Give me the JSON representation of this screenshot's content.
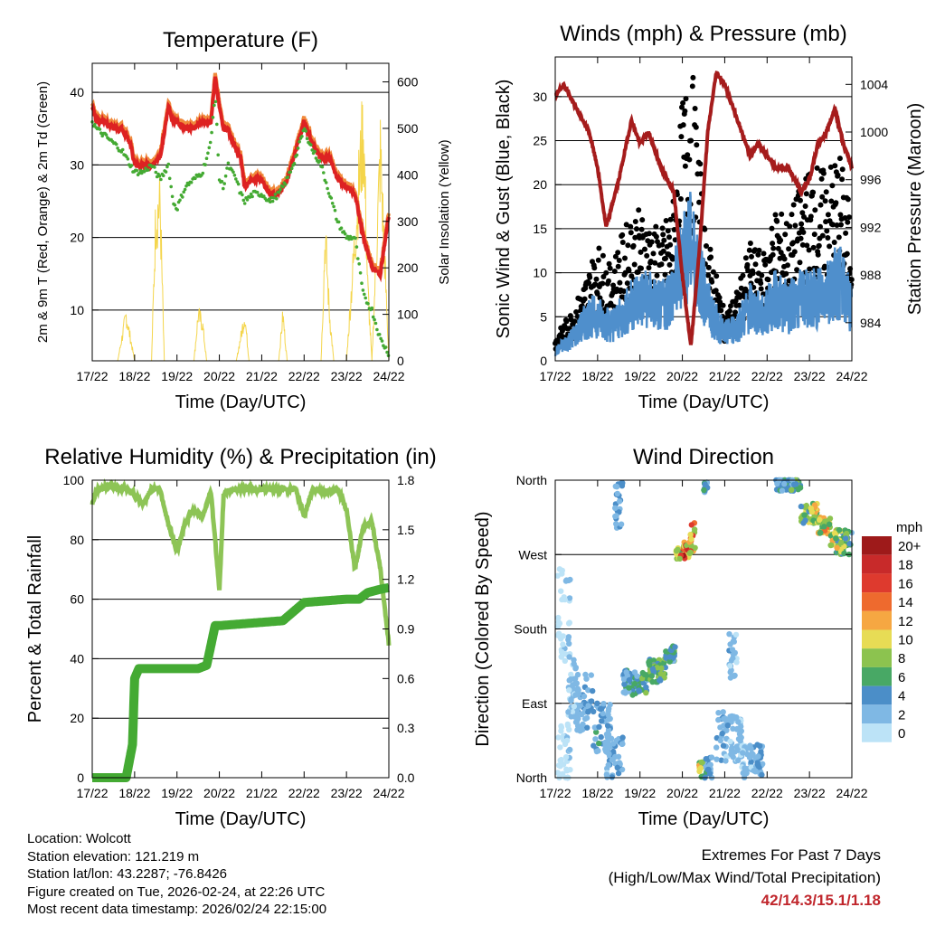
{
  "chart_data": [
    {
      "type": "line",
      "title": "Temperature (F)",
      "xlabel": "Time (Day/UTC)",
      "ylabel": "2m & 9m T (Red, Orange) & 2m Td (Green)",
      "y2label": "Solar Insolation (Yellow)",
      "x_ticks": [
        "17/22",
        "18/22",
        "19/22",
        "20/22",
        "21/22",
        "22/22",
        "23/22",
        "24/22"
      ],
      "y_ticks": [
        "10",
        "20",
        "30",
        "40"
      ],
      "y2_ticks": [
        "0",
        "100",
        "200",
        "300",
        "400",
        "500",
        "600"
      ],
      "ylim": [
        3,
        44
      ],
      "y2lim": [
        0,
        640
      ],
      "series": [
        {
          "name": "2m T",
          "color": "#dd2222",
          "x": [
            0,
            0.1,
            0.3,
            0.5,
            0.7,
            0.9,
            1.0,
            1.2,
            1.4,
            1.6,
            1.8,
            1.9,
            2.0,
            2.2,
            2.4,
            2.6,
            2.8,
            2.9,
            3.0,
            3.1,
            3.2,
            3.4,
            3.5,
            3.6,
            3.8,
            4.0,
            4.2,
            4.4,
            4.6,
            4.8,
            5.0,
            5.2,
            5.4,
            5.6,
            5.8,
            6.0,
            6.2,
            6.4,
            6.6,
            6.8,
            7.0
          ],
          "values": [
            38,
            36,
            36,
            35,
            35,
            33,
            30,
            30,
            30,
            31,
            38,
            36,
            36,
            35,
            35,
            36,
            36,
            42,
            38,
            35,
            35,
            32,
            31,
            27,
            28,
            28,
            26,
            26,
            28,
            32,
            36,
            33,
            31,
            31,
            28,
            27,
            26,
            20,
            16,
            15,
            23
          ]
        },
        {
          "name": "Td",
          "color": "#44aa33",
          "x": [
            0,
            0.1,
            0.3,
            0.5,
            0.7,
            0.9,
            1.0,
            1.2,
            1.4,
            1.6,
            1.8,
            1.9,
            2.0,
            2.2,
            2.4,
            2.6,
            2.8,
            2.9,
            3.0,
            3.1,
            3.2,
            3.4,
            3.5,
            3.6,
            3.8,
            4.0,
            4.2,
            4.4,
            4.6,
            4.8,
            5.0,
            5.2,
            5.4,
            5.6,
            5.8,
            6.0,
            6.2,
            6.4,
            6.6,
            6.8,
            7.0
          ],
          "values": [
            36,
            35,
            34,
            33,
            32,
            30,
            29,
            29,
            30,
            28,
            30,
            25,
            24,
            27,
            28,
            29,
            33,
            40,
            28,
            27,
            30,
            28,
            26,
            25,
            26,
            26,
            25,
            26,
            28,
            31,
            35,
            32,
            30,
            26,
            22,
            20,
            20,
            12,
            10,
            6,
            4
          ]
        },
        {
          "name": "Solar Insolation",
          "color": "#f4d54b",
          "x": [
            0,
            0.6,
            0.8,
            1.0,
            1.4,
            1.5,
            1.6,
            1.7,
            2.0,
            2.4,
            2.5,
            2.6,
            2.7,
            3.0,
            3.4,
            3.6,
            3.7,
            3.8,
            4.0,
            4.4,
            4.5,
            4.6,
            4.7,
            5.0,
            5.4,
            5.5,
            5.6,
            5.7,
            6.0,
            6.3,
            6.4,
            6.5,
            6.6,
            6.8,
            7.0
          ],
          "values": [
            0,
            0,
            120,
            0,
            0,
            380,
            420,
            0,
            0,
            0,
            120,
            100,
            0,
            0,
            0,
            120,
            0,
            0,
            0,
            0,
            120,
            0,
            0,
            0,
            0,
            330,
            120,
            0,
            0,
            480,
            620,
            200,
            0,
            550,
            0
          ]
        }
      ]
    },
    {
      "type": "scatter",
      "title": "Winds (mph) & Pressure (mb)",
      "xlabel": "Time (Day/UTC)",
      "ylabel": "Sonic Wind & Gust (Blue, Black)",
      "y2label": "Station Pressure (Maroon)",
      "x_ticks": [
        "17/22",
        "18/22",
        "19/22",
        "20/22",
        "21/22",
        "22/22",
        "23/22",
        "24/22"
      ],
      "y_ticks": [
        "0",
        "5",
        "10",
        "15",
        "20",
        "25",
        "30"
      ],
      "y2_ticks": [
        "984",
        "988",
        "992",
        "996",
        "1000",
        "1004"
      ],
      "ylim": [
        0,
        34.5
      ],
      "y2lim": [
        980.8,
        1006.3
      ],
      "series": [
        {
          "name": "Wind",
          "color": "#4f8fcc",
          "x": [
            0,
            0.5,
            0.8,
            1.0,
            1.3,
            1.6,
            1.9,
            2.2,
            2.5,
            2.8,
            3.0,
            3.2,
            3.4,
            3.5,
            3.7,
            4.0,
            4.3,
            4.6,
            4.9,
            5.2,
            5.5,
            5.8,
            6.1,
            6.4,
            6.7,
            6.9,
            7.0
          ],
          "values": [
            1,
            3,
            5,
            5,
            4,
            5,
            7,
            7,
            6,
            8,
            12,
            13,
            10,
            8,
            5,
            3,
            4,
            6,
            5,
            7,
            6,
            7,
            7,
            8,
            9,
            7,
            6
          ]
        },
        {
          "name": "Gust",
          "color": "#000000",
          "x": [
            0,
            0.5,
            0.8,
            1.0,
            1.3,
            1.6,
            1.9,
            2.2,
            2.5,
            2.8,
            3.0,
            3.2,
            3.4,
            3.5,
            3.7,
            4.0,
            4.3,
            4.6,
            4.9,
            5.2,
            5.5,
            5.8,
            6.1,
            6.4,
            6.7,
            6.9,
            7.0
          ],
          "values": [
            2,
            5,
            8,
            10,
            8,
            11,
            13,
            12,
            11,
            14,
            22,
            26,
            18,
            12,
            9,
            4,
            6,
            10,
            9,
            13,
            12,
            15,
            17,
            16,
            18,
            14,
            12
          ]
        },
        {
          "name": "Pressure",
          "color": "#a51c1c",
          "x": [
            0,
            0.2,
            0.5,
            0.8,
            1.0,
            1.2,
            1.5,
            1.8,
            2.0,
            2.2,
            2.5,
            2.8,
            3.0,
            3.2,
            3.4,
            3.6,
            3.8,
            4.0,
            4.2,
            4.4,
            4.6,
            4.8,
            5.0,
            5.2,
            5.5,
            5.8,
            6.0,
            6.2,
            6.4,
            6.6,
            6.8,
            7.0
          ],
          "values": [
            1003,
            1004,
            1002,
            1000,
            997,
            992,
            996,
            1001,
            999,
            1000,
            997,
            995,
            988,
            982,
            990,
            1000,
            1005,
            1004,
            1002,
            1000,
            998,
            999,
            998,
            997,
            997,
            995,
            996,
            999,
            1000,
            1002,
            999,
            997
          ]
        }
      ]
    },
    {
      "type": "line",
      "title": "Relative Humidity (%) & Precipitation (in)",
      "xlabel": "Time (Day/UTC)",
      "ylabel": "Percent & Total Rainfall",
      "x_ticks": [
        "17/22",
        "18/22",
        "19/22",
        "20/22",
        "21/22",
        "22/22",
        "23/22",
        "24/22"
      ],
      "y_ticks": [
        "0",
        "20",
        "40",
        "60",
        "80",
        "100"
      ],
      "y2_ticks": [
        "0.0",
        "0.3",
        "0.6",
        "0.9",
        "1.2",
        "1.5",
        "1.8"
      ],
      "ylim": [
        0,
        100
      ],
      "y2lim": [
        0,
        1.8
      ],
      "series": [
        {
          "name": "RH",
          "color": "#8dc456",
          "x": [
            0,
            0.1,
            0.4,
            0.8,
            1.0,
            1.2,
            1.4,
            1.6,
            1.8,
            2.0,
            2.2,
            2.4,
            2.6,
            2.8,
            2.9,
            3.0,
            3.1,
            3.3,
            3.6,
            3.9,
            4.2,
            4.5,
            4.8,
            5.0,
            5.2,
            5.5,
            5.8,
            6.0,
            6.2,
            6.4,
            6.6,
            6.8,
            7.0
          ],
          "values": [
            92,
            97,
            98,
            97,
            95,
            92,
            97,
            97,
            85,
            76,
            86,
            90,
            88,
            96,
            80,
            63,
            95,
            97,
            97,
            97,
            97,
            97,
            97,
            88,
            97,
            96,
            97,
            90,
            70,
            85,
            86,
            70,
            45
          ]
        },
        {
          "name": "Precipitation",
          "color": "#44aa33",
          "x": [
            0,
            0.5,
            0.8,
            0.95,
            1.0,
            1.1,
            1.2,
            1.5,
            2.0,
            2.5,
            2.7,
            2.8,
            2.9,
            3.0,
            3.5,
            4.0,
            4.5,
            5.0,
            5.5,
            6.0,
            6.3,
            6.5,
            6.8,
            7.0
          ],
          "values": [
            0,
            0,
            0,
            0.2,
            0.6,
            0.66,
            0.66,
            0.66,
            0.66,
            0.66,
            0.68,
            0.8,
            0.92,
            0.92,
            0.93,
            0.94,
            0.95,
            1.06,
            1.07,
            1.08,
            1.08,
            1.12,
            1.14,
            1.15
          ]
        }
      ]
    },
    {
      "type": "scatter",
      "title": "Wind Direction",
      "xlabel": "Time (Day/UTC)",
      "ylabel": "Direction (Colored By Speed)",
      "x_ticks": [
        "17/22",
        "18/22",
        "19/22",
        "20/22",
        "21/22",
        "22/22",
        "23/22",
        "24/22"
      ],
      "y_ticks": [
        "North",
        "East",
        "South",
        "West",
        "North"
      ],
      "legend_title": "mph",
      "legend_labels": [
        "20+",
        "18",
        "16",
        "14",
        "12",
        "10",
        "8",
        "6",
        "4",
        "2",
        "0"
      ],
      "legend_colors": [
        "#9e1a1a",
        "#c82a2a",
        "#de3a2e",
        "#ee6a2e",
        "#f6a742",
        "#e7dc55",
        "#8cc34f",
        "#48a865",
        "#4b8ec8",
        "#7fb8e4",
        "#bce3f7"
      ],
      "x": [
        0.1,
        0.3,
        0.5,
        0.8,
        1.0,
        1.2,
        1.5,
        1.8,
        2.0,
        2.3,
        2.6,
        2.8,
        3.0,
        3.2,
        3.4,
        3.6,
        3.8,
        4.0,
        4.2,
        4.4,
        4.6,
        4.9,
        5.2,
        5.5,
        5.7,
        6.0,
        6.2,
        6.4,
        6.6,
        6.8,
        7.0
      ],
      "values": [
        200,
        150,
        100,
        60,
        70,
        50,
        20,
        110,
        120,
        105,
        130,
        150,
        270,
        275,
        285,
        25,
        45,
        15,
        20,
        60,
        100,
        110,
        90,
        10,
        355,
        330,
        320,
        300,
        290,
        280,
        260
      ],
      "speeds": [
        1,
        2,
        3,
        4,
        5,
        3,
        4,
        5,
        6,
        7,
        7,
        6,
        15,
        13,
        9,
        4,
        4,
        3,
        3,
        2,
        3,
        4,
        4,
        5,
        7,
        8,
        10,
        11,
        9,
        8,
        6
      ]
    }
  ],
  "info": {
    "location": "Location: Wolcott",
    "elevation": "Station elevation: 121.219 m",
    "latlon": "Station lat/lon: 43.2287; -76.8426",
    "created": "Figure created on Tue, 2026-02-24, at 22:26 UTC",
    "recent": "Most recent data timestamp: 2026/02/24 22:15:00"
  },
  "extremes": {
    "line1": "Extremes For Past 7 Days",
    "line2": "(High/Low/Max Wind/Total Precipitation)",
    "values": "42/14.3/15.1/1.18"
  }
}
